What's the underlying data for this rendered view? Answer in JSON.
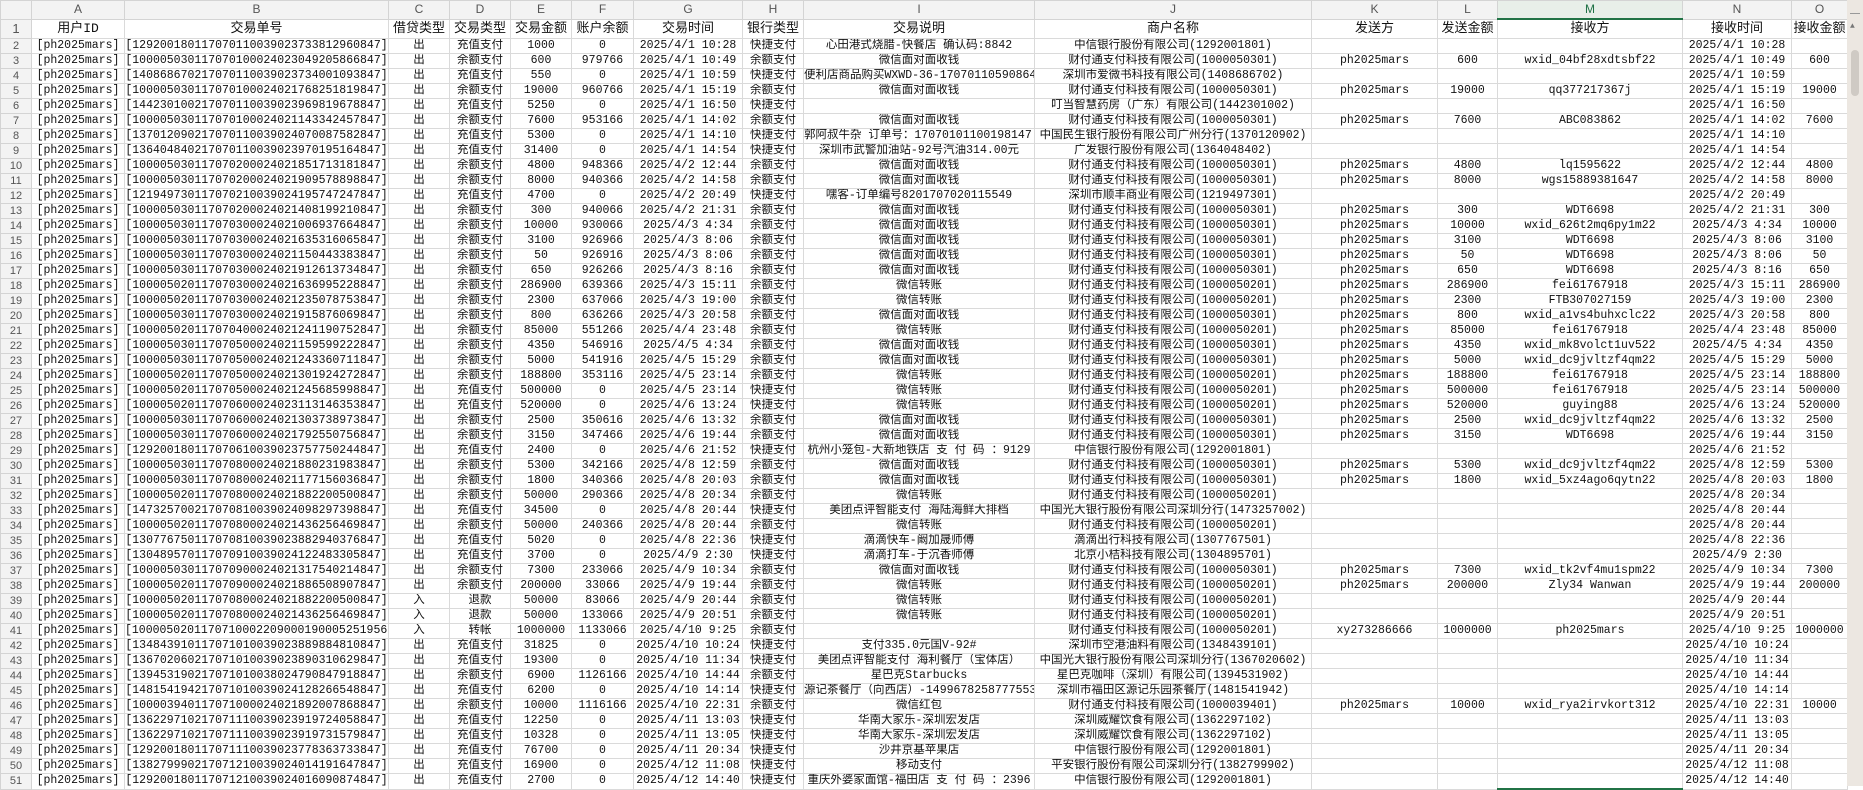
{
  "colors": {
    "accent": "#217346",
    "grid": "#dadada",
    "header_bg": "#f3f3f3"
  },
  "active_column": "M",
  "column_letters": [
    "A",
    "B",
    "C",
    "D",
    "E",
    "F",
    "G",
    "H",
    "I",
    "J",
    "K",
    "L",
    "M",
    "N",
    "O"
  ],
  "headers": [
    "用户ID",
    "交易单号",
    "借贷类型",
    "交易类型",
    "交易金额",
    "账户余额",
    "交易时间",
    "银行类型",
    "交易说明",
    "商户名称",
    "发送方",
    "发送金额",
    "接收方",
    "接收时间",
    "接收金额"
  ],
  "rows": [
    [
      "[ph2025mars]",
      "[129200180117070110039023733812960847]",
      "出",
      "充值支付",
      "1000",
      "0",
      "2025/4/1 10:28",
      "快捷支付",
      "心田港式烧腊-快餐店 确认码:8842",
      "中信银行股份有限公司(1292001801)",
      "",
      "",
      "",
      "2025/4/1 10:28",
      ""
    ],
    [
      "[ph2025mars]",
      "[100005030117070100024023049205866847]",
      "出",
      "余额支付",
      "600",
      "979766",
      "2025/4/1 10:49",
      "余额支付",
      "微信面对面收钱",
      "财付通支付科技有限公司(1000050301)",
      "ph2025mars",
      "600",
      "wxid_04bf28xdtsbf22",
      "2025/4/1 10:49",
      "600"
    ],
    [
      "[ph2025mars]",
      "[140868670217070110039023734001093847]",
      "出",
      "充值支付",
      "550",
      "0",
      "2025/4/1 10:59",
      "快捷支付",
      "便利店商品购买WXWD-36-17070110590864",
      "深圳市爱微书科技有限公司(1408686702)",
      "",
      "",
      "",
      "2025/4/1 10:59",
      ""
    ],
    [
      "[ph2025mars]",
      "[100005030117070100024021768251819847]",
      "出",
      "余额支付",
      "19000",
      "960766",
      "2025/4/1 15:19",
      "余额支付",
      "微信面对面收钱",
      "财付通支付科技有限公司(1000050301)",
      "ph2025mars",
      "19000",
      "qq377217367j",
      "2025/4/1 15:19",
      "19000"
    ],
    [
      "[ph2025mars]",
      "[144230100217070110039023969819678847]",
      "出",
      "充值支付",
      "5250",
      "0",
      "2025/4/1 16:50",
      "快捷支付",
      "",
      "叮当智慧药房（广东）有限公司(1442301002)",
      "",
      "",
      "",
      "2025/4/1 16:50",
      ""
    ],
    [
      "[ph2025mars]",
      "[100005030117070100024021143342457847]",
      "出",
      "余额支付",
      "7600",
      "953166",
      "2025/4/1 14:02",
      "余额支付",
      "微信面对面收钱",
      "财付通支付科技有限公司(1000050301)",
      "ph2025mars",
      "7600",
      "ABC083862",
      "2025/4/1 14:02",
      "7600"
    ],
    [
      "[ph2025mars]",
      "[137012090217070110039024070087582847]",
      "出",
      "充值支付",
      "5300",
      "0",
      "2025/4/1 14:10",
      "快捷支付",
      "郭阿叔牛杂 订单号：17070101100198147 核码",
      "中国民生银行股份有限公司广州分行(1370120902)",
      "",
      "",
      "",
      "2025/4/1 14:10",
      ""
    ],
    [
      "[ph2025mars]",
      "[136404840217070110039023970195164847]",
      "出",
      "充值支付",
      "31400",
      "0",
      "2025/4/1 14:54",
      "快捷支付",
      "深圳市武警加油站-92号汽油314.00元",
      "广发银行股份有限公司(1364048402)",
      "",
      "",
      "",
      "2025/4/1 14:54",
      ""
    ],
    [
      "[ph2025mars]",
      "[100005030117070200024021851713181847]",
      "出",
      "余额支付",
      "4800",
      "948366",
      "2025/4/2 12:44",
      "余额支付",
      "微信面对面收钱",
      "财付通支付科技有限公司(1000050301)",
      "ph2025mars",
      "4800",
      "lq1595622",
      "2025/4/2 12:44",
      "4800"
    ],
    [
      "[ph2025mars]",
      "[100005030117070200024021909578898847]",
      "出",
      "余额支付",
      "8000",
      "940366",
      "2025/4/2 14:58",
      "余额支付",
      "微信面对面收钱",
      "财付通支付科技有限公司(1000050301)",
      "ph2025mars",
      "8000",
      "wgs15889381647",
      "2025/4/2 14:58",
      "8000"
    ],
    [
      "[ph2025mars]",
      "[121949730117070210039024195747247847]",
      "出",
      "充值支付",
      "4700",
      "0",
      "2025/4/2 20:49",
      "快捷支付",
      "嘿客-订单编号8201707020115549",
      "深圳市顺丰商业有限公司(1219497301)",
      "",
      "",
      "",
      "2025/4/2 20:49",
      ""
    ],
    [
      "[ph2025mars]",
      "[100005030117070200024021408199210847]",
      "出",
      "余额支付",
      "300",
      "940066",
      "2025/4/2 21:31",
      "余额支付",
      "微信面对面收钱",
      "财付通支付科技有限公司(1000050301)",
      "ph2025mars",
      "300",
      "WDT6698",
      "2025/4/2 21:31",
      "300"
    ],
    [
      "[ph2025mars]",
      "[100005030117070300024021006937664847]",
      "出",
      "余额支付",
      "10000",
      "930066",
      "2025/4/3 4:34",
      "余额支付",
      "微信面对面收钱",
      "财付通支付科技有限公司(1000050301)",
      "ph2025mars",
      "10000",
      "wxid_626t2mq6py1m22",
      "2025/4/3 4:34",
      "10000"
    ],
    [
      "[ph2025mars]",
      "[100005030117070300024021635316065847]",
      "出",
      "余额支付",
      "3100",
      "926966",
      "2025/4/3 8:06",
      "余额支付",
      "微信面对面收钱",
      "财付通支付科技有限公司(1000050301)",
      "ph2025mars",
      "3100",
      "WDT6698",
      "2025/4/3 8:06",
      "3100"
    ],
    [
      "[ph2025mars]",
      "[100005030117070300024021150443383847]",
      "出",
      "余额支付",
      "50",
      "926916",
      "2025/4/3 8:06",
      "余额支付",
      "微信面对面收钱",
      "财付通支付科技有限公司(1000050301)",
      "ph2025mars",
      "50",
      "WDT6698",
      "2025/4/3 8:06",
      "50"
    ],
    [
      "[ph2025mars]",
      "[100005030117070300024021912613734847]",
      "出",
      "余额支付",
      "650",
      "926266",
      "2025/4/3 8:16",
      "余额支付",
      "微信面对面收钱",
      "财付通支付科技有限公司(1000050301)",
      "ph2025mars",
      "650",
      "WDT6698",
      "2025/4/3 8:16",
      "650"
    ],
    [
      "[ph2025mars]",
      "[100005020117070300024021636995228847]",
      "出",
      "余额支付",
      "286900",
      "639366",
      "2025/4/3 15:11",
      "余额支付",
      "微信转账",
      "财付通支付科技有限公司(1000050201)",
      "ph2025mars",
      "286900",
      "fei61767918",
      "2025/4/3 15:11",
      "286900"
    ],
    [
      "[ph2025mars]",
      "[100005020117070300024021235078753847]",
      "出",
      "余额支付",
      "2300",
      "637066",
      "2025/4/3 19:00",
      "余额支付",
      "微信转账",
      "财付通支付科技有限公司(1000050201)",
      "ph2025mars",
      "2300",
      "FTB307027159",
      "2025/4/3 19:00",
      "2300"
    ],
    [
      "[ph2025mars]",
      "[100005030117070300024021915876069847]",
      "出",
      "余额支付",
      "800",
      "636266",
      "2025/4/3 20:58",
      "余额支付",
      "微信面对面收钱",
      "财付通支付科技有限公司(1000050301)",
      "ph2025mars",
      "800",
      "wxid_a1vs4buhxclc22",
      "2025/4/3 20:58",
      "800"
    ],
    [
      "[ph2025mars]",
      "[100005020117070400024021241190752847]",
      "出",
      "余额支付",
      "85000",
      "551266",
      "2025/4/4 23:48",
      "余额支付",
      "微信转账",
      "财付通支付科技有限公司(1000050201)",
      "ph2025mars",
      "85000",
      "fei61767918",
      "2025/4/4 23:48",
      "85000"
    ],
    [
      "[ph2025mars]",
      "[100005030117070500024021159599222847]",
      "出",
      "余额支付",
      "4350",
      "546916",
      "2025/4/5 4:34",
      "余额支付",
      "微信面对面收钱",
      "财付通支付科技有限公司(1000050301)",
      "ph2025mars",
      "4350",
      "wxid_mk8volct1uv522",
      "2025/4/5 4:34",
      "4350"
    ],
    [
      "[ph2025mars]",
      "[100005030117070500024021243360711847]",
      "出",
      "余额支付",
      "5000",
      "541916",
      "2025/4/5 15:29",
      "余额支付",
      "微信面对面收钱",
      "财付通支付科技有限公司(1000050301)",
      "ph2025mars",
      "5000",
      "wxid_dc9jvltzf4qm22",
      "2025/4/5 15:29",
      "5000"
    ],
    [
      "[ph2025mars]",
      "[100005020117070500024021301924272847]",
      "出",
      "余额支付",
      "188800",
      "353116",
      "2025/4/5 23:14",
      "余额支付",
      "微信转账",
      "财付通支付科技有限公司(1000050201)",
      "ph2025mars",
      "188800",
      "fei61767918",
      "2025/4/5 23:14",
      "188800"
    ],
    [
      "[ph2025mars]",
      "[100005020117070500024021245685998847]",
      "出",
      "充值支付",
      "500000",
      "0",
      "2025/4/5 23:14",
      "快捷支付",
      "微信转账",
      "财付通支付科技有限公司(1000050201)",
      "ph2025mars",
      "500000",
      "fei61767918",
      "2025/4/5 23:14",
      "500000"
    ],
    [
      "[ph2025mars]",
      "[100005020117070600024023113146353847]",
      "出",
      "充值支付",
      "520000",
      "0",
      "2025/4/6 13:24",
      "快捷支付",
      "微信转账",
      "财付通支付科技有限公司(1000050201)",
      "ph2025mars",
      "520000",
      "guying88",
      "2025/4/6 13:24",
      "520000"
    ],
    [
      "[ph2025mars]",
      "[100005030117070600024021303738973847]",
      "出",
      "余额支付",
      "2500",
      "350616",
      "2025/4/6 13:32",
      "余额支付",
      "微信面对面收钱",
      "财付通支付科技有限公司(1000050301)",
      "ph2025mars",
      "2500",
      "wxid_dc9jvltzf4qm22",
      "2025/4/6 13:32",
      "2500"
    ],
    [
      "[ph2025mars]",
      "[100005030117070600024021792550756847]",
      "出",
      "余额支付",
      "3150",
      "347466",
      "2025/4/6 19:44",
      "余额支付",
      "微信面对面收钱",
      "财付通支付科技有限公司(1000050301)",
      "ph2025mars",
      "3150",
      "WDT6698",
      "2025/4/6 19:44",
      "3150"
    ],
    [
      "[ph2025mars]",
      "[129200180117070610039023757750244847]",
      "出",
      "充值支付",
      "2400",
      "0",
      "2025/4/6 21:52",
      "快捷支付",
      "杭州小笼包-大新地铁店 支 付 码 ：9129",
      "中信银行股份有限公司(1292001801)",
      "",
      "",
      "",
      "2025/4/6 21:52",
      ""
    ],
    [
      "[ph2025mars]",
      "[100005030117070800024021880231983847]",
      "出",
      "余额支付",
      "5300",
      "342166",
      "2025/4/8 12:59",
      "余额支付",
      "微信面对面收钱",
      "财付通支付科技有限公司(1000050301)",
      "ph2025mars",
      "5300",
      "wxid_dc9jvltzf4qm22",
      "2025/4/8 12:59",
      "5300"
    ],
    [
      "[ph2025mars]",
      "[100005030117070800024021177156036847]",
      "出",
      "余额支付",
      "1800",
      "340366",
      "2025/4/8 20:03",
      "余额支付",
      "微信面对面收钱",
      "财付通支付科技有限公司(1000050301)",
      "ph2025mars",
      "1800",
      "wxid_5xz4ago6qytn22",
      "2025/4/8 20:03",
      "1800"
    ],
    [
      "[ph2025mars]",
      "[100005020117070800024021882200500847]",
      "出",
      "余额支付",
      "50000",
      "290366",
      "2025/4/8 20:34",
      "余额支付",
      "微信转账",
      "财付通支付科技有限公司(1000050201)",
      "",
      "",
      "",
      "2025/4/8 20:34",
      ""
    ],
    [
      "[ph2025mars]",
      "[147325700217070810039024098297398847]",
      "出",
      "充值支付",
      "34500",
      "0",
      "2025/4/8 20:44",
      "快捷支付",
      "美团点评智能支付 海陆海鲜大排档",
      "中国光大银行股份有限公司深圳分行(1473257002)",
      "",
      "",
      "",
      "2025/4/8 20:44",
      ""
    ],
    [
      "[ph2025mars]",
      "[100005020117070800024021436256469847]",
      "出",
      "余额支付",
      "50000",
      "240366",
      "2025/4/8 20:44",
      "余额支付",
      "微信转账",
      "财付通支付科技有限公司(1000050201)",
      "",
      "",
      "",
      "2025/4/8 20:44",
      ""
    ],
    [
      "[ph2025mars]",
      "[130776750117070810039023882940376847]",
      "出",
      "充值支付",
      "5020",
      "0",
      "2025/4/8 22:36",
      "快捷支付",
      "滴滴快车-阚加晟师傅",
      "滴滴出行科技有限公司(1307767501)",
      "",
      "",
      "",
      "2025/4/8 22:36",
      ""
    ],
    [
      "[ph2025mars]",
      "[130489570117070910039024122483305847]",
      "出",
      "充值支付",
      "3700",
      "0",
      "2025/4/9 2:30",
      "快捷支付",
      "滴滴打车-于沉香师傅",
      "北京小桔科技有限公司(1304895701)",
      "",
      "",
      "",
      "2025/4/9 2:30",
      ""
    ],
    [
      "[ph2025mars]",
      "[100005030117070900024021317540214847]",
      "出",
      "余额支付",
      "7300",
      "233066",
      "2025/4/9 10:34",
      "余额支付",
      "微信面对面收钱",
      "财付通支付科技有限公司(1000050301)",
      "ph2025mars",
      "7300",
      "wxid_tk2vf4mu1spm22",
      "2025/4/9 10:34",
      "7300"
    ],
    [
      "[ph2025mars]",
      "[100005020117070900024021886508907847]",
      "出",
      "余额支付",
      "200000",
      "33066",
      "2025/4/9 19:44",
      "余额支付",
      "微信转账",
      "财付通支付科技有限公司(1000050201)",
      "ph2025mars",
      "200000",
      "Zly34 Wanwan",
      "2025/4/9 19:44",
      "200000"
    ],
    [
      "[ph2025mars]",
      "[100005020117070800024021882200500847]",
      "入",
      "退款",
      "50000",
      "83066",
      "2025/4/9 20:44",
      "余额支付",
      "微信转账",
      "财付通支付科技有限公司(1000050201)",
      "",
      "",
      "",
      "2025/4/9 20:44",
      ""
    ],
    [
      "[ph2025mars]",
      "[100005020117070800024021436256469847]",
      "入",
      "退款",
      "50000",
      "133066",
      "2025/4/9 20:51",
      "余额支付",
      "微信转账",
      "财付通支付科技有限公司(1000050201)",
      "",
      "",
      "",
      "2025/4/9 20:51",
      ""
    ],
    [
      "[ph2025mars]",
      "[1000050201170710002209000190005251956847]",
      "入",
      "转帐",
      "1000000",
      "1133066",
      "2025/4/10 9:25",
      "余额支付",
      "",
      "财付通支付科技有限公司(1000050201)",
      "xy273286666",
      "1000000",
      "ph2025mars",
      "2025/4/10 9:25",
      "1000000"
    ],
    [
      "[ph2025mars]",
      "[134843910117071010039023889884810847]",
      "出",
      "充值支付",
      "31825",
      "0",
      "2025/4/10 10:24",
      "快捷支付",
      "支付335.0元国V-92#",
      "深圳市空港油料有限公司(1348439101)",
      "",
      "",
      "",
      "2025/4/10 10:24",
      ""
    ],
    [
      "[ph2025mars]",
      "[136702060217071010039023890310629847]",
      "出",
      "充值支付",
      "19300",
      "0",
      "2025/4/10 11:34",
      "快捷支付",
      "美团点评智能支付 海利餐厅（宝体店）",
      "中国光大银行股份有限公司深圳分行(1367020602)",
      "",
      "",
      "",
      "2025/4/10 11:34",
      ""
    ],
    [
      "[ph2025mars]",
      "[139453190217071010038024790847918847]",
      "出",
      "余额支付",
      "6900",
      "1126166",
      "2025/4/10 14:44",
      "余额支付",
      "星巴克Starbucks",
      "星巴克咖啡（深圳）有限公司(1394531902)",
      "",
      "",
      "",
      "2025/4/10 14:44",
      ""
    ],
    [
      "[ph2025mars]",
      "[148154194217071010039024128266548847]",
      "出",
      "充值支付",
      "6200",
      "0",
      "2025/4/10 14:14",
      "快捷支付",
      "源记茶餐厅（向西店）-149967825877755352",
      "深圳市福田区源记乐园茶餐厅(1481541942)",
      "",
      "",
      "",
      "2025/4/10 14:14",
      ""
    ],
    [
      "[ph2025mars]",
      "[100003940117071000024021892007868847]",
      "出",
      "余额支付",
      "10000",
      "1116166",
      "2025/4/10 22:31",
      "余额支付",
      "微信红包",
      "财付通支付科技有限公司(1000039401)",
      "ph2025mars",
      "10000",
      "wxid_rya2irvkort312",
      "2025/4/10 22:31",
      "10000"
    ],
    [
      "[ph2025mars]",
      "[136229710217071110039023919724058847]",
      "出",
      "充值支付",
      "12250",
      "0",
      "2025/4/11 13:03",
      "快捷支付",
      "华南大家乐-深圳宏发店",
      "深圳威耀饮食有限公司(1362297102)",
      "",
      "",
      "",
      "2025/4/11 13:03",
      ""
    ],
    [
      "[ph2025mars]",
      "[136229710217071110039023919731579847]",
      "出",
      "充值支付",
      "10328",
      "0",
      "2025/4/11 13:05",
      "快捷支付",
      "华南大家乐-深圳宏发店",
      "深圳威耀饮食有限公司(1362297102)",
      "",
      "",
      "",
      "2025/4/11 13:05",
      ""
    ],
    [
      "[ph2025mars]",
      "[129200180117071110039023778363733847]",
      "出",
      "充值支付",
      "76700",
      "0",
      "2025/4/11 20:34",
      "快捷支付",
      "沙井京基苹果店",
      "中信银行股份有限公司(1292001801)",
      "",
      "",
      "",
      "2025/4/11 20:34",
      ""
    ],
    [
      "[ph2025mars]",
      "[138279990217071210039024014191647847]",
      "出",
      "充值支付",
      "16900",
      "0",
      "2025/4/12 11:08",
      "快捷支付",
      "移动支付",
      "平安银行股份有限公司深圳分行(1382799902)",
      "",
      "",
      "",
      "2025/4/12 11:08",
      ""
    ],
    [
      "[ph2025mars]",
      "[129200180117071210039024016090874847]",
      "出",
      "充值支付",
      "2700",
      "0",
      "2025/4/12 14:40",
      "快捷支付",
      "重庆外婆家面馆-福田店 支 付 码 ：2396",
      "中信银行股份有限公司(1292001801)",
      "",
      "",
      "",
      "2025/4/12 14:40",
      ""
    ]
  ]
}
